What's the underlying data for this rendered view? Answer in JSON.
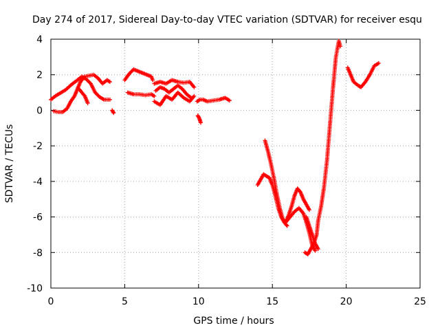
{
  "chart_data": {
    "type": "scatter",
    "title": "Day 274 of 2017, Sidereal Day-to-day VTEC variation (SDTVAR) for receiver esqu",
    "xlabel": "GPS time / hours",
    "ylabel": "SDTVAR / TECUs",
    "xlim": [
      0,
      25
    ],
    "ylim": [
      -10,
      4
    ],
    "xticks": [
      0,
      5,
      10,
      15,
      20,
      25
    ],
    "yticks": [
      -10,
      -8,
      -6,
      -4,
      -2,
      0,
      2,
      4
    ],
    "xtick_labels": [
      "0",
      "5",
      "10",
      "15",
      "20",
      "25"
    ],
    "ytick_labels": [
      "-10",
      "-8",
      "-6",
      "-4",
      "-2",
      "0",
      "2",
      "4"
    ],
    "grid": true,
    "marker": "+",
    "series_color": "#ff0000",
    "segments": [
      {
        "x": [
          0.0,
          0.3,
          0.6,
          1.0,
          1.4,
          1.8,
          2.1,
          2.4,
          2.7,
          3.0,
          3.3,
          3.6,
          3.9,
          4.0
        ],
        "y": [
          0.6,
          0.8,
          0.95,
          1.15,
          1.45,
          1.7,
          1.9,
          1.75,
          1.5,
          1.0,
          0.75,
          0.6,
          0.6,
          0.6
        ]
      },
      {
        "x": [
          0.2,
          0.5,
          0.8,
          1.1,
          1.35,
          1.6,
          1.8,
          2.0,
          2.3,
          2.6,
          2.9,
          3.2,
          3.5,
          3.8,
          4.0
        ],
        "y": [
          -0.05,
          -0.1,
          -0.1,
          0.1,
          0.5,
          0.8,
          1.2,
          1.6,
          1.9,
          1.95,
          2.0,
          1.8,
          1.5,
          1.7,
          1.6
        ]
      },
      {
        "x": [
          1.9,
          2.1,
          2.3,
          2.5
        ],
        "y": [
          1.2,
          1.0,
          0.8,
          0.4
        ]
      },
      {
        "x": [
          4.15,
          4.25
        ],
        "y": [
          0.0,
          -0.15
        ]
      },
      {
        "x": [
          5.0,
          5.3,
          5.6,
          5.9,
          6.2,
          6.5,
          6.8,
          6.9
        ],
        "y": [
          1.7,
          2.05,
          2.3,
          2.2,
          2.1,
          2.0,
          1.9,
          1.7
        ]
      },
      {
        "x": [
          5.2,
          5.6,
          6.0,
          6.4,
          6.8,
          7.0
        ],
        "y": [
          1.0,
          0.9,
          0.9,
          0.85,
          0.9,
          0.8
        ]
      },
      {
        "x": [
          7.0,
          7.4,
          7.8,
          8.2,
          8.6,
          9.0,
          9.4,
          9.7
        ],
        "y": [
          1.5,
          1.6,
          1.5,
          1.7,
          1.6,
          1.55,
          1.6,
          1.3
        ]
      },
      {
        "x": [
          7.0,
          7.4,
          7.8,
          8.2,
          8.6,
          9.0,
          9.4,
          9.7
        ],
        "y": [
          0.5,
          0.3,
          0.8,
          0.6,
          1.0,
          0.7,
          0.5,
          0.8
        ]
      },
      {
        "x": [
          7.1,
          7.4,
          7.7,
          8.0,
          8.3,
          8.6,
          8.9,
          9.2,
          9.5
        ],
        "y": [
          1.1,
          1.3,
          1.2,
          1.0,
          1.2,
          1.4,
          1.2,
          0.9,
          0.7
        ]
      },
      {
        "x": [
          9.9,
          10.1,
          10.3,
          10.6,
          11.0,
          11.4,
          11.8,
          12.1
        ],
        "y": [
          0.5,
          0.6,
          0.6,
          0.5,
          0.55,
          0.6,
          0.7,
          0.55
        ]
      },
      {
        "x": [
          9.95,
          10.05,
          10.15
        ],
        "y": [
          -0.3,
          -0.45,
          -0.7
        ]
      },
      {
        "x": [
          14.0,
          14.2,
          14.4,
          14.6,
          14.8,
          15.0,
          15.2,
          15.4,
          15.6,
          15.8,
          16.0
        ],
        "y": [
          -4.2,
          -3.9,
          -3.6,
          -3.7,
          -3.8,
          -4.2,
          -4.8,
          -5.5,
          -6.0,
          -6.3,
          -6.5
        ]
      },
      {
        "x": [
          14.5,
          14.7,
          14.9,
          15.1,
          15.3,
          15.5,
          15.7,
          15.9,
          16.1,
          16.3,
          16.5,
          16.7,
          16.9,
          17.1,
          17.3,
          17.5
        ],
        "y": [
          -1.7,
          -2.3,
          -3.0,
          -3.8,
          -4.7,
          -5.5,
          -6.1,
          -6.3,
          -5.9,
          -5.4,
          -4.8,
          -4.4,
          -4.6,
          -5.0,
          -5.3,
          -5.6
        ]
      },
      {
        "x": [
          15.9,
          16.2,
          16.5,
          16.8,
          17.1,
          17.3,
          17.5,
          17.7,
          17.9
        ],
        "y": [
          -6.3,
          -6.0,
          -5.7,
          -5.5,
          -5.8,
          -6.3,
          -6.9,
          -7.6,
          -7.9
        ]
      },
      {
        "x": [
          17.2,
          17.4,
          17.6,
          17.8,
          18.0,
          18.1,
          18.3,
          18.5,
          18.7,
          18.9,
          19.1,
          19.3,
          19.5,
          19.6
        ],
        "y": [
          -8.0,
          -8.1,
          -7.8,
          -7.5,
          -7.0,
          -6.2,
          -5.4,
          -4.3,
          -2.8,
          -0.8,
          1.2,
          3.0,
          3.9,
          3.6
        ]
      },
      {
        "x": [
          17.3,
          17.5,
          17.7,
          17.9,
          18.1
        ],
        "y": [
          -6.0,
          -6.5,
          -7.0,
          -7.5,
          -7.8
        ]
      },
      {
        "x": [
          20.1,
          20.3,
          20.5,
          20.8,
          21.0,
          21.3,
          21.6,
          21.9,
          22.2
        ],
        "y": [
          2.4,
          2.0,
          1.6,
          1.4,
          1.3,
          1.6,
          2.0,
          2.5,
          2.65
        ]
      }
    ]
  }
}
